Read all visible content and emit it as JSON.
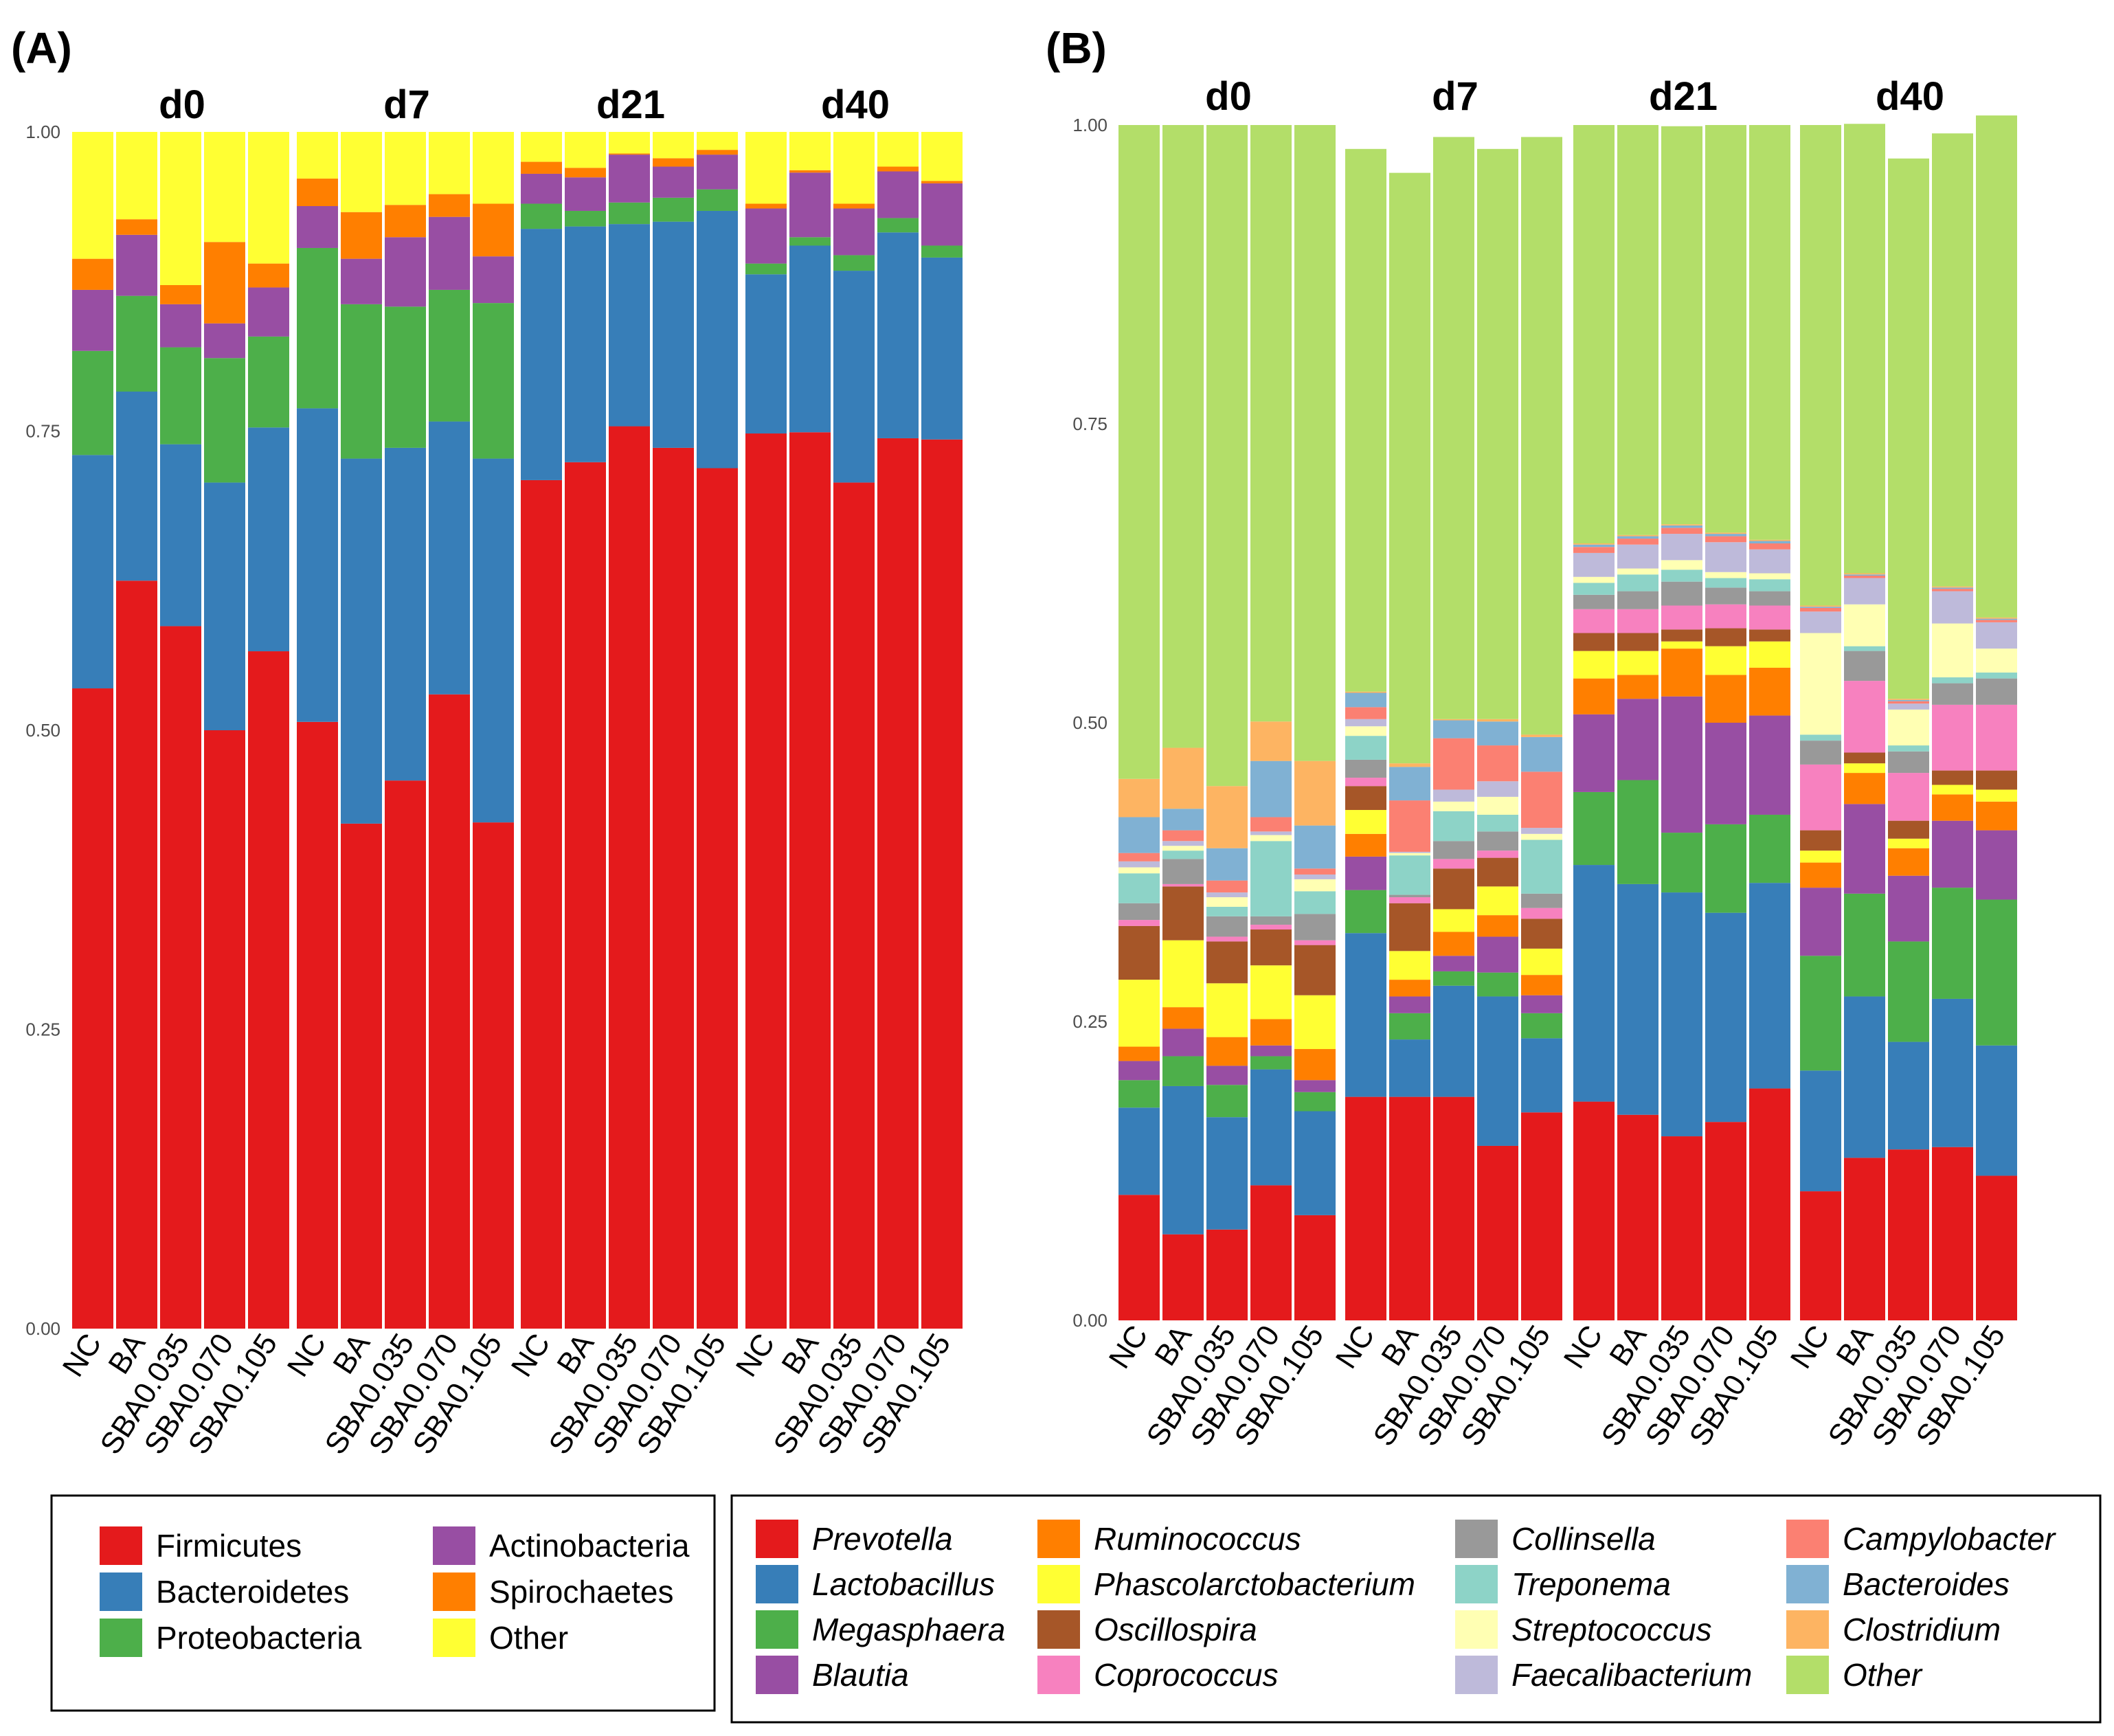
{
  "figure": {
    "label_a": "(A)",
    "label_b": "(B)"
  },
  "chart_data": [
    {
      "type": "bar",
      "stacked": true,
      "panel": "(A)",
      "facets": [
        "d0",
        "d7",
        "d21",
        "d40"
      ],
      "categories": [
        "NC",
        "BA",
        "SBA0.035",
        "SBA0.070",
        "SBA0.105"
      ],
      "ylim": [
        0,
        1
      ],
      "yticks": [
        "0.00",
        "0.25",
        "0.50",
        "0.75",
        "1.00"
      ],
      "legend_italic": false,
      "series": [
        {
          "name": "Firmicutes",
          "color": "#e41a1c",
          "values": [
            [
              0.535,
              0.625,
              0.587,
              0.5,
              0.566
            ],
            [
              0.507,
              0.422,
              0.458,
              0.53,
              0.423
            ],
            [
              0.709,
              0.724,
              0.754,
              0.736,
              0.719
            ],
            [
              0.748,
              0.749,
              0.707,
              0.744,
              0.743
            ]
          ]
        },
        {
          "name": "Bacteroidetes",
          "color": "#377eb8",
          "values": [
            [
              0.195,
              0.158,
              0.152,
              0.207,
              0.187
            ],
            [
              0.262,
              0.305,
              0.278,
              0.228,
              0.304
            ],
            [
              0.21,
              0.197,
              0.169,
              0.189,
              0.215
            ],
            [
              0.133,
              0.156,
              0.177,
              0.172,
              0.152
            ]
          ]
        },
        {
          "name": "Proteobacteria",
          "color": "#4daf4a",
          "values": [
            [
              0.087,
              0.08,
              0.081,
              0.104,
              0.076
            ],
            [
              0.134,
              0.129,
              0.118,
              0.11,
              0.13
            ],
            [
              0.021,
              0.013,
              0.018,
              0.02,
              0.018
            ],
            [
              0.009,
              0.007,
              0.013,
              0.012,
              0.01
            ]
          ]
        },
        {
          "name": "Actinobacteria",
          "color": "#984ea3",
          "values": [
            [
              0.051,
              0.051,
              0.036,
              0.029,
              0.041
            ],
            [
              0.035,
              0.038,
              0.058,
              0.061,
              0.039
            ],
            [
              0.025,
              0.028,
              0.04,
              0.026,
              0.029
            ],
            [
              0.046,
              0.054,
              0.039,
              0.039,
              0.052
            ]
          ]
        },
        {
          "name": "Spirochaetes",
          "color": "#ff7f00",
          "values": [
            [
              0.026,
              0.013,
              0.016,
              0.068,
              0.02
            ],
            [
              0.023,
              0.039,
              0.027,
              0.019,
              0.044
            ],
            [
              0.01,
              0.008,
              0.001,
              0.007,
              0.004
            ],
            [
              0.004,
              0.002,
              0.004,
              0.004,
              0.002
            ]
          ]
        },
        {
          "name": "Other",
          "color": "#ffff33",
          "values": [
            [
              0.106,
              0.073,
              0.128,
              0.092,
              0.11
            ],
            [
              0.039,
              0.067,
              0.061,
              0.052,
              0.06
            ],
            [
              0.025,
              0.03,
              0.018,
              0.022,
              0.015
            ],
            [
              0.06,
              0.032,
              0.06,
              0.029,
              0.041
            ]
          ]
        }
      ]
    },
    {
      "type": "bar",
      "stacked": true,
      "panel": "(B)",
      "facets": [
        "d0",
        "d7",
        "d21",
        "d40"
      ],
      "categories": [
        "NC",
        "BA",
        "SBA0.035",
        "SBA0.070",
        "SBA0.105"
      ],
      "ylim": [
        0,
        1
      ],
      "yticks": [
        "0.00",
        "0.25",
        "0.50",
        "0.75",
        "1.00"
      ],
      "legend_italic": true,
      "series": [
        {
          "name": "Prevotella",
          "color": "#e41a1c",
          "values": [
            [
              0.105,
              0.072,
              0.076,
              0.113,
              0.088
            ],
            [
              0.187,
              0.187,
              0.187,
              0.146,
              0.174
            ],
            [
              0.183,
              0.172,
              0.154,
              0.166,
              0.194
            ],
            [
              0.108,
              0.136,
              0.143,
              0.145,
              0.121
            ]
          ]
        },
        {
          "name": "Lactobacillus",
          "color": "#377eb8",
          "values": [
            [
              0.073,
              0.124,
              0.094,
              0.097,
              0.087
            ],
            [
              0.137,
              0.048,
              0.093,
              0.125,
              0.062
            ],
            [
              0.198,
              0.193,
              0.204,
              0.175,
              0.172
            ],
            [
              0.101,
              0.135,
              0.09,
              0.124,
              0.109
            ]
          ]
        },
        {
          "name": "Megasphaera",
          "color": "#4daf4a",
          "values": [
            [
              0.023,
              0.025,
              0.027,
              0.011,
              0.016
            ],
            [
              0.036,
              0.022,
              0.012,
              0.02,
              0.021
            ],
            [
              0.061,
              0.087,
              0.05,
              0.074,
              0.057
            ],
            [
              0.096,
              0.086,
              0.084,
              0.093,
              0.122
            ]
          ]
        },
        {
          "name": "Blautia",
          "color": "#984ea3",
          "values": [
            [
              0.016,
              0.023,
              0.016,
              0.009,
              0.01
            ],
            [
              0.028,
              0.014,
              0.013,
              0.03,
              0.015
            ],
            [
              0.065,
              0.068,
              0.114,
              0.085,
              0.083
            ],
            [
              0.057,
              0.075,
              0.055,
              0.056,
              0.058
            ]
          ]
        },
        {
          "name": "Ruminococcus",
          "color": "#ff7f00",
          "values": [
            [
              0.012,
              0.018,
              0.024,
              0.022,
              0.026
            ],
            [
              0.019,
              0.014,
              0.02,
              0.018,
              0.017
            ],
            [
              0.03,
              0.02,
              0.04,
              0.04,
              0.04
            ],
            [
              0.021,
              0.026,
              0.023,
              0.022,
              0.024
            ]
          ]
        },
        {
          "name": "Phascolarctobacterium",
          "color": "#ffff33",
          "values": [
            [
              0.056,
              0.056,
              0.045,
              0.045,
              0.045
            ],
            [
              0.02,
              0.024,
              0.019,
              0.024,
              0.022
            ],
            [
              0.023,
              0.02,
              0.006,
              0.024,
              0.022
            ],
            [
              0.01,
              0.008,
              0.008,
              0.008,
              0.01
            ]
          ]
        },
        {
          "name": "Oscillospira",
          "color": "#a65628",
          "values": [
            [
              0.045,
              0.045,
              0.035,
              0.03,
              0.042
            ],
            [
              0.02,
              0.04,
              0.034,
              0.024,
              0.025
            ],
            [
              0.015,
              0.015,
              0.01,
              0.015,
              0.01
            ],
            [
              0.017,
              0.009,
              0.015,
              0.012,
              0.016
            ]
          ]
        },
        {
          "name": "Coprococcus",
          "color": "#f781bf",
          "values": [
            [
              0.005,
              0.002,
              0.004,
              0.004,
              0.004
            ],
            [
              0.007,
              0.005,
              0.008,
              0.006,
              0.009
            ],
            [
              0.02,
              0.02,
              0.02,
              0.02,
              0.02
            ],
            [
              0.055,
              0.06,
              0.04,
              0.055,
              0.055
            ]
          ]
        },
        {
          "name": "Collinsella",
          "color": "#999999",
          "values": [
            [
              0.014,
              0.021,
              0.017,
              0.007,
              0.022
            ],
            [
              0.015,
              0.002,
              0.015,
              0.016,
              0.012
            ],
            [
              0.012,
              0.015,
              0.02,
              0.014,
              0.012
            ],
            [
              0.02,
              0.025,
              0.018,
              0.018,
              0.022
            ]
          ]
        },
        {
          "name": "Treponema",
          "color": "#8dd3c7",
          "values": [
            [
              0.025,
              0.007,
              0.008,
              0.063,
              0.019
            ],
            [
              0.02,
              0.033,
              0.025,
              0.014,
              0.045
            ],
            [
              0.01,
              0.014,
              0.01,
              0.008,
              0.01
            ],
            [
              0.005,
              0.004,
              0.005,
              0.005,
              0.005
            ]
          ]
        },
        {
          "name": "Streptococcus",
          "color": "#ffffb3",
          "values": [
            [
              0.005,
              0.004,
              0.008,
              0.005,
              0.01
            ],
            [
              0.008,
              0.002,
              0.008,
              0.015,
              0.005
            ],
            [
              0.005,
              0.005,
              0.008,
              0.005,
              0.005
            ],
            [
              0.085,
              0.035,
              0.03,
              0.045,
              0.02
            ]
          ]
        },
        {
          "name": "Faecalibacterium",
          "color": "#bebada",
          "values": [
            [
              0.005,
              0.004,
              0.004,
              0.003,
              0.004
            ],
            [
              0.006,
              0.001,
              0.01,
              0.013,
              0.005
            ],
            [
              0.02,
              0.02,
              0.022,
              0.025,
              0.02
            ],
            [
              0.018,
              0.022,
              0.005,
              0.027,
              0.022
            ]
          ]
        },
        {
          "name": "Campylobacter",
          "color": "#fb8072",
          "values": [
            [
              0.007,
              0.009,
              0.01,
              0.012,
              0.005
            ],
            [
              0.01,
              0.043,
              0.043,
              0.03,
              0.047
            ],
            [
              0.005,
              0.005,
              0.005,
              0.005,
              0.005
            ],
            [
              0.003,
              0.002,
              0.002,
              0.002,
              0.002
            ]
          ]
        },
        {
          "name": "Bacteroides",
          "color": "#80b1d3",
          "values": [
            [
              0.03,
              0.018,
              0.027,
              0.047,
              0.036
            ],
            [
              0.012,
              0.028,
              0.015,
              0.02,
              0.029
            ],
            [
              0.002,
              0.002,
              0.002,
              0.002,
              0.002
            ],
            [
              0.001,
              0.001,
              0.001,
              0.001,
              0.001
            ]
          ]
        },
        {
          "name": "Clostridium",
          "color": "#fdb462",
          "values": [
            [
              0.032,
              0.051,
              0.052,
              0.033,
              0.054
            ],
            [
              0.001,
              0.003,
              0.001,
              0.002,
              0.002
            ],
            [
              0.001,
              0.001,
              0.001,
              0.001,
              0.001
            ],
            [
              0.001,
              0.001,
              0.001,
              0.001,
              0.001
            ]
          ]
        },
        {
          "name": "Other",
          "color": "#b3de69",
          "values": [
            [
              0.547,
              0.521,
              0.553,
              0.499,
              0.532
            ],
            [
              0.454,
              0.494,
              0.487,
              0.477,
              0.5
            ],
            [
              0.35,
              0.343,
              0.333,
              0.341,
              0.347
            ],
            [
              0.402,
              0.376,
              0.452,
              0.379,
              0.42
            ]
          ]
        }
      ]
    }
  ]
}
